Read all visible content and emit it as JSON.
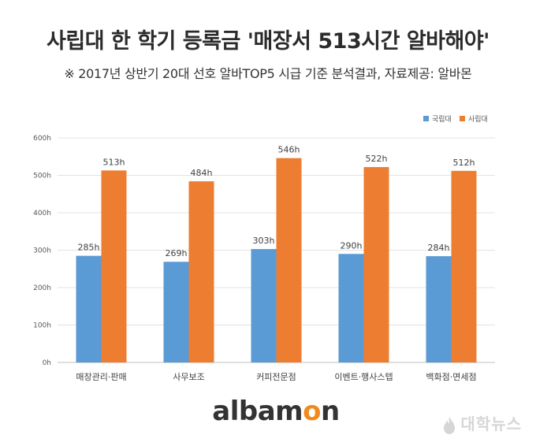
{
  "header": {
    "title": "사립대 한 학기 등록금 '매장서 513시간 알바해야'",
    "subtitle": "※ 2017년 상반기 20대 선호 알바TOP5 시급 기준 분석결과, 자료제공: 알바몬"
  },
  "chart_data": {
    "type": "bar",
    "categories": [
      "매장관리·판매",
      "사무보조",
      "커피전문점",
      "이벤트·행사스텝",
      "백화점·면세점"
    ],
    "series": [
      {
        "name": "국립대",
        "values": [
          285,
          269,
          303,
          290,
          284
        ],
        "color": "#5b9bd5"
      },
      {
        "name": "사립대",
        "values": [
          513,
          484,
          546,
          522,
          512
        ],
        "color": "#ed7d31"
      }
    ],
    "value_suffix": "h",
    "ylim": [
      0,
      600
    ],
    "yticks": [
      0,
      100,
      200,
      300,
      400,
      500,
      600
    ],
    "ytick_labels": [
      "0h",
      "100h",
      "200h",
      "300h",
      "400h",
      "500h",
      "600h"
    ],
    "legend_position": "top-right",
    "grid": true
  },
  "footer": {
    "logo_main": "albam",
    "logo_accent": "o",
    "logo_end": "n",
    "watermark": "대학뉴스"
  }
}
